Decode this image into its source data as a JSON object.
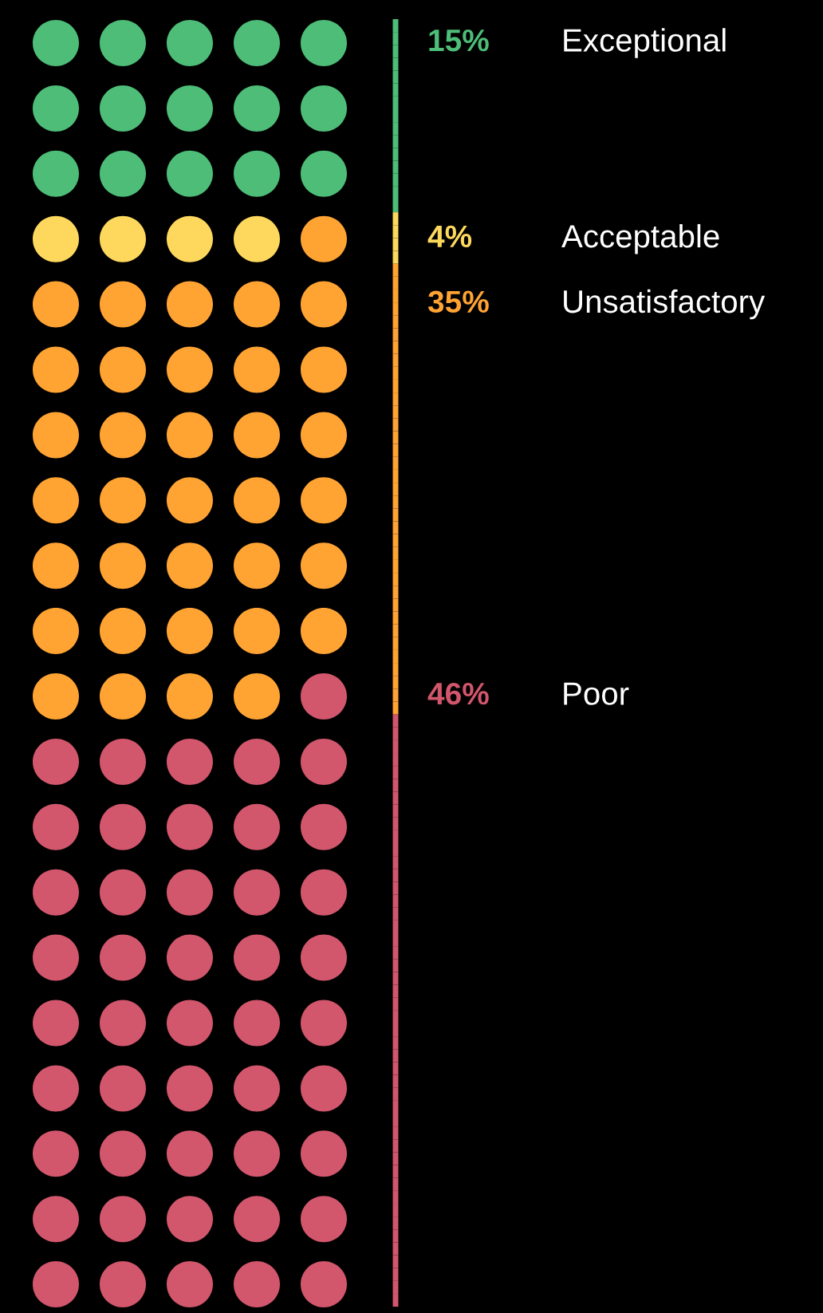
{
  "chart_data": {
    "type": "other",
    "categories": [
      "Exceptional",
      "Acceptable",
      "Unsatisfactory",
      "Poor"
    ],
    "values": [
      15,
      4,
      35,
      46
    ],
    "value_labels": [
      "15%",
      "4%",
      "35%",
      "46%"
    ],
    "colors": [
      "#4dbd78",
      "#fdd85d",
      "#ffa333",
      "#d2566c"
    ]
  }
}
